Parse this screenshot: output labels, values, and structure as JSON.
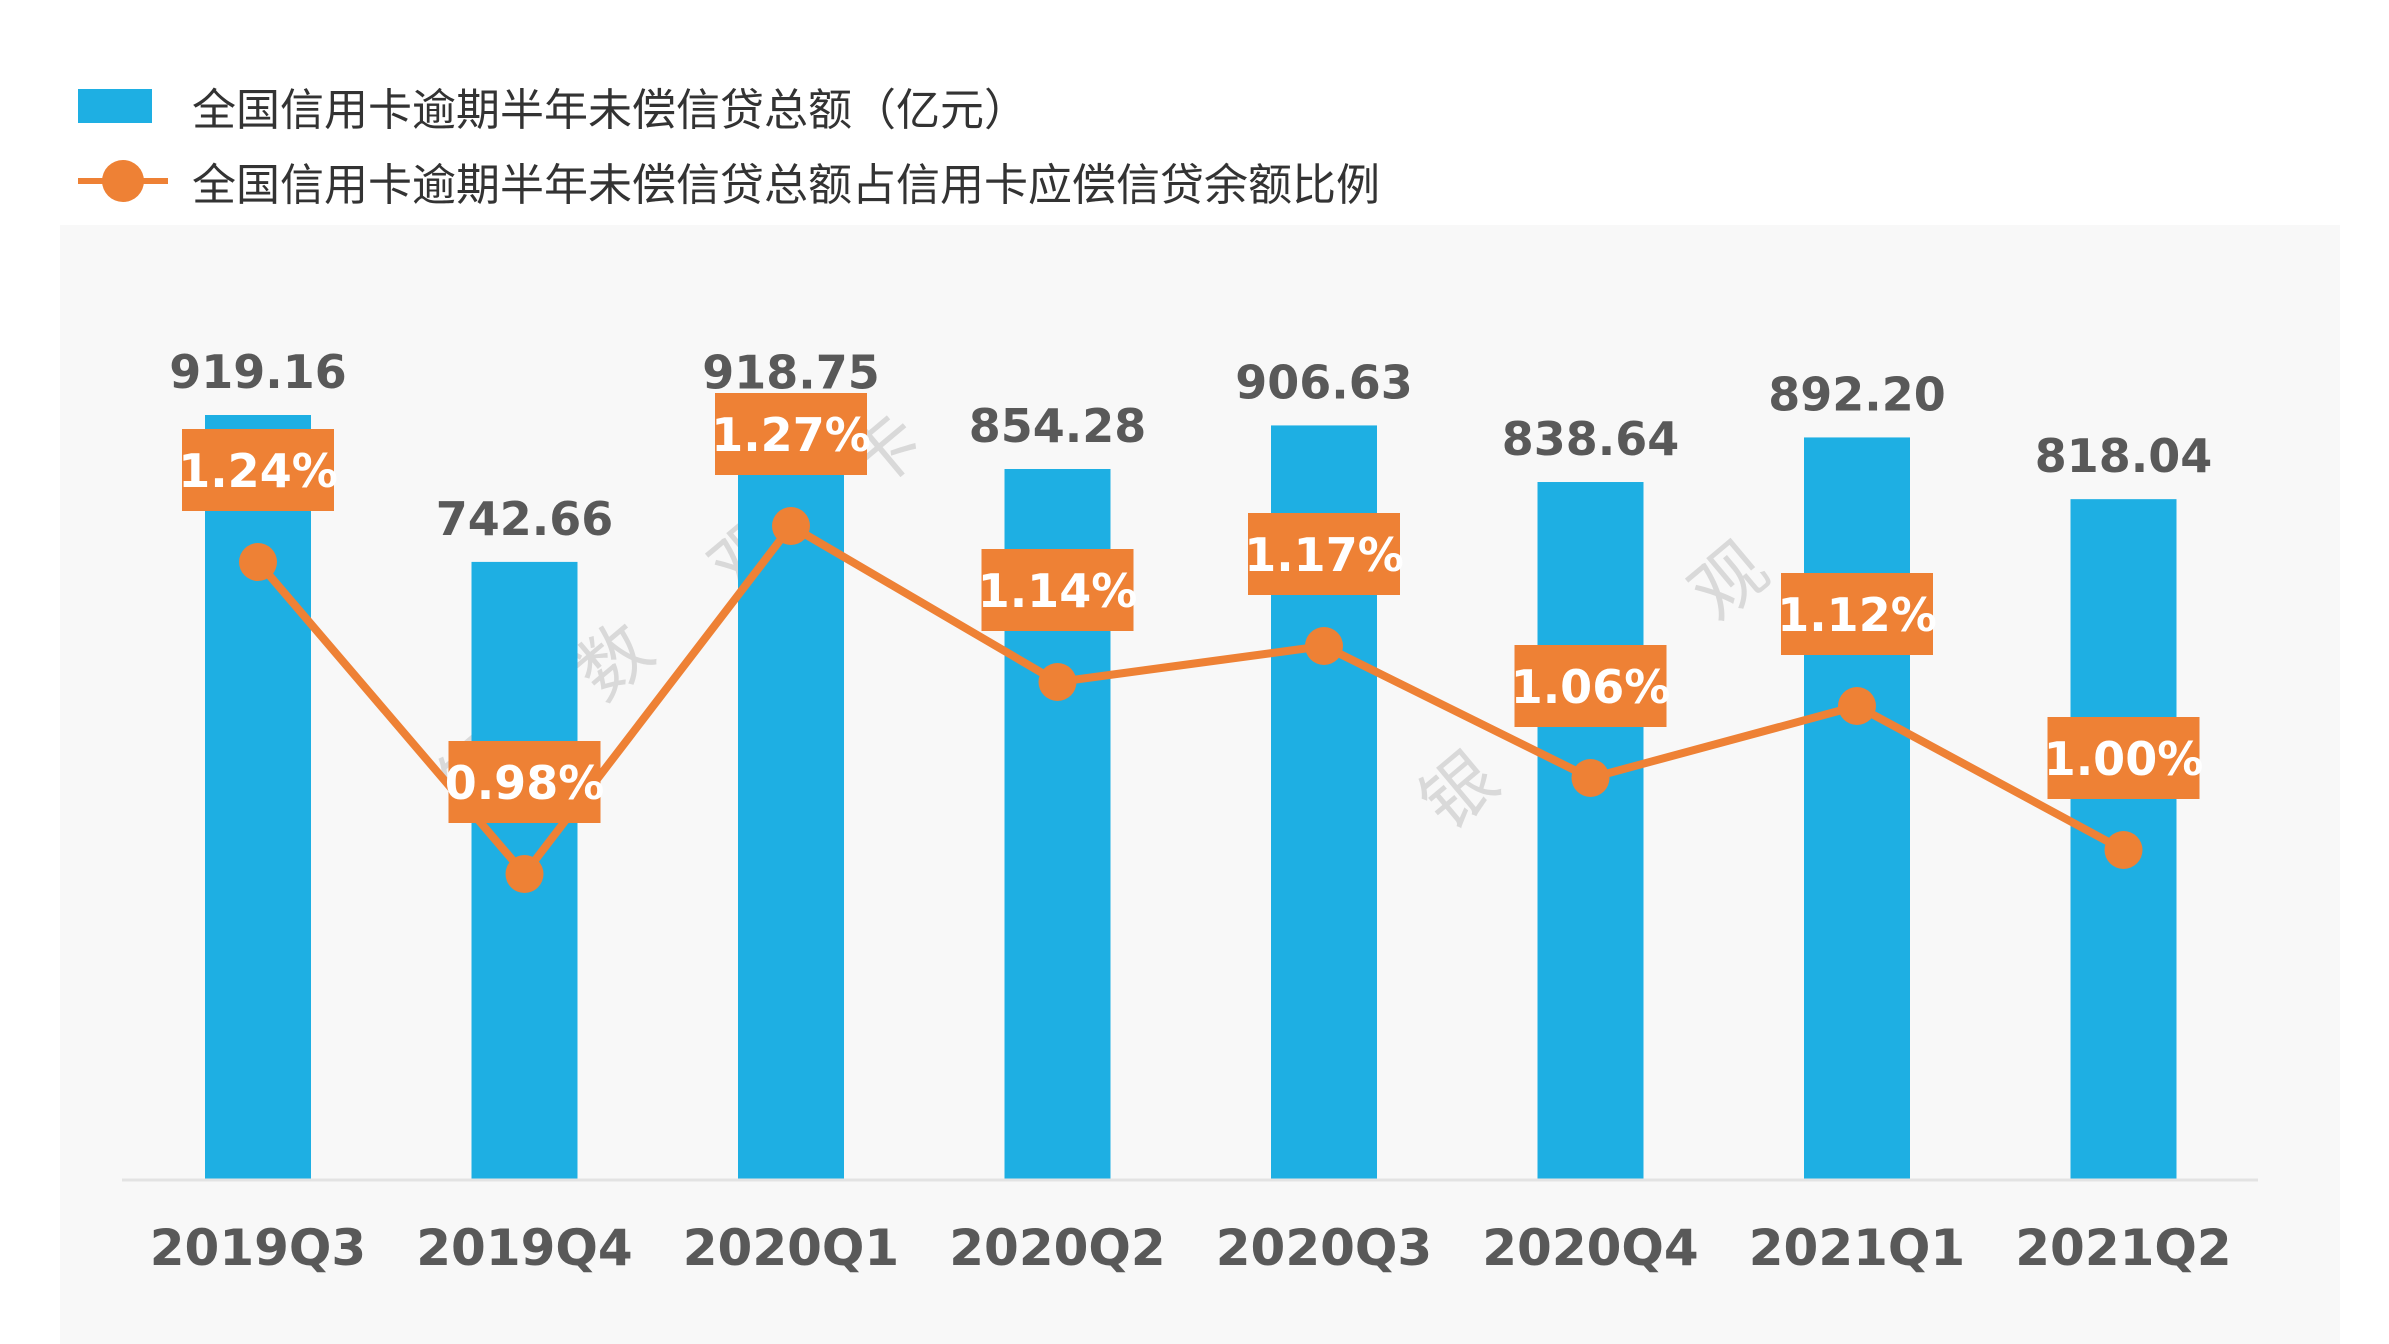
{
  "legend": {
    "bar_label": "全国信用卡逾期半年未偿信贷总额（亿元）",
    "line_label": "全国信用卡逾期半年未偿信贷总额占信用卡应偿信贷余额比例"
  },
  "watermark": "银 数 观 卡",
  "colors": {
    "bar": "#1eafe3",
    "line": "#ee8135",
    "value_text": "#595959",
    "axis_text": "#595959",
    "pct_text": "#ffffff"
  },
  "chart_data": {
    "type": "bar",
    "categories": [
      "2019Q3",
      "2019Q4",
      "2020Q1",
      "2020Q2",
      "2020Q3",
      "2020Q4",
      "2021Q1",
      "2021Q2"
    ],
    "series": [
      {
        "name": "全国信用卡逾期半年未偿信贷总额（亿元）",
        "type": "bar",
        "values": [
          919.16,
          742.66,
          918.75,
          854.28,
          906.63,
          838.64,
          892.2,
          818.04
        ],
        "labels": [
          "919.16",
          "742.66",
          "918.75",
          "854.28",
          "906.63",
          "838.64",
          "892.20",
          "818.04"
        ]
      },
      {
        "name": "全国信用卡逾期半年未偿信贷总额占信用卡应偿信贷余额比例",
        "type": "line",
        "values": [
          1.24,
          0.98,
          1.27,
          1.14,
          1.17,
          1.06,
          1.12,
          1.0
        ],
        "labels": [
          "1.24%",
          "0.98%",
          "1.27%",
          "1.14%",
          "1.17%",
          "1.06%",
          "1.12%",
          "1.00%"
        ]
      }
    ],
    "bar_ylim": [
      0,
      919.16
    ],
    "line_ylim": [
      0.6,
      1.35
    ],
    "grid": false,
    "legend_position": "top-left"
  }
}
